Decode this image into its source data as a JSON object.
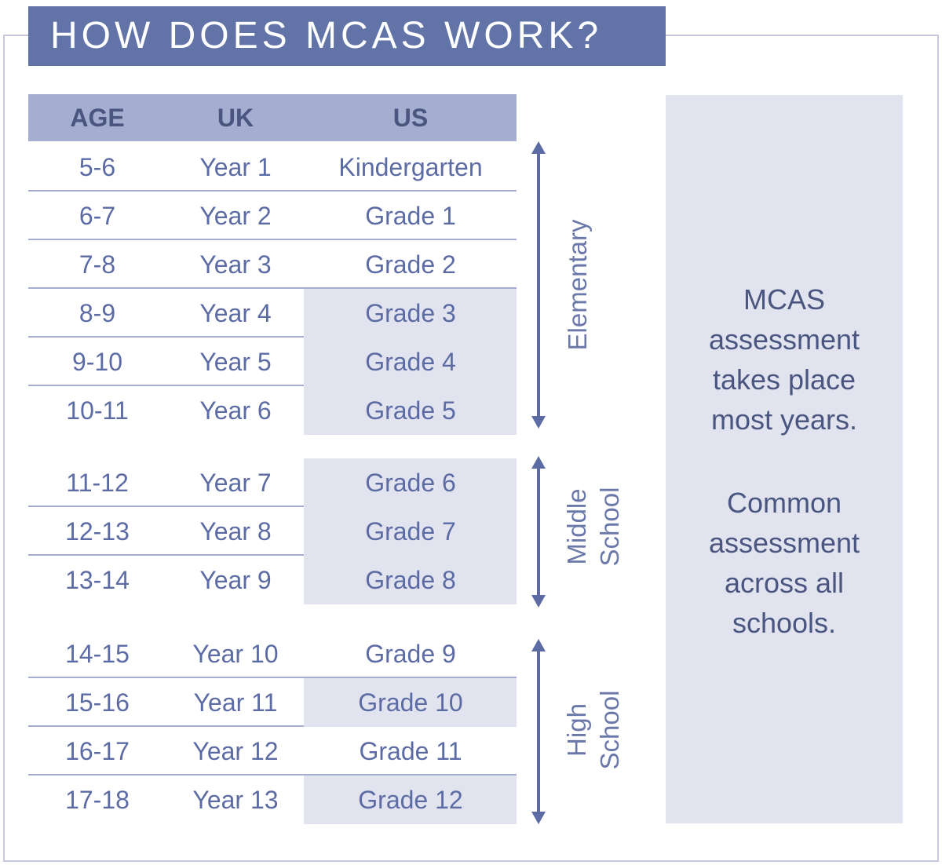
{
  "title": "HOW DOES MCAS WORK?",
  "table": {
    "headers": {
      "age": "AGE",
      "uk": "UK",
      "us": "US"
    },
    "rows": [
      {
        "age": "5-6",
        "uk": "Year 1",
        "us": "Kindergarten",
        "highlight": false
      },
      {
        "age": "6-7",
        "uk": "Year 2",
        "us": "Grade 1",
        "highlight": false
      },
      {
        "age": "7-8",
        "uk": "Year 3",
        "us": "Grade 2",
        "highlight": false
      },
      {
        "age": "8-9",
        "uk": "Year 4",
        "us": "Grade 3",
        "highlight": true
      },
      {
        "age": "9-10",
        "uk": "Year 5",
        "us": "Grade 4",
        "highlight": true
      },
      {
        "age": "10-11",
        "uk": "Year 6",
        "us": "Grade 5",
        "highlight": true
      },
      {
        "age": "11-12",
        "uk": "Year 7",
        "us": "Grade 6",
        "highlight": true
      },
      {
        "age": "12-13",
        "uk": "Year 8",
        "us": "Grade 7",
        "highlight": true
      },
      {
        "age": "13-14",
        "uk": "Year 9",
        "us": "Grade 8",
        "highlight": true
      },
      {
        "age": "14-15",
        "uk": "Year 10",
        "us": "Grade 9",
        "highlight": false
      },
      {
        "age": "15-16",
        "uk": "Year 11",
        "us": "Grade 10",
        "highlight": true
      },
      {
        "age": "16-17",
        "uk": "Year 12",
        "us": "Grade 11",
        "highlight": false
      },
      {
        "age": "17-18",
        "uk": "Year 13",
        "us": "Grade 12",
        "highlight": true
      }
    ]
  },
  "phases": {
    "elementary": "Elementary",
    "middle_line1": "Middle",
    "middle_line2": "School",
    "high_line1": "High",
    "high_line2": "School"
  },
  "side_panel": {
    "para1": [
      "MCAS",
      "assessment",
      "takes place",
      "most years."
    ],
    "para2": [
      "Common",
      "assessment",
      "across all",
      "schools."
    ]
  },
  "colors": {
    "title_background": "#6273a8",
    "header_background": "#a5aed0",
    "highlight": "#e1e4ef",
    "text": "#5c6ba4"
  }
}
